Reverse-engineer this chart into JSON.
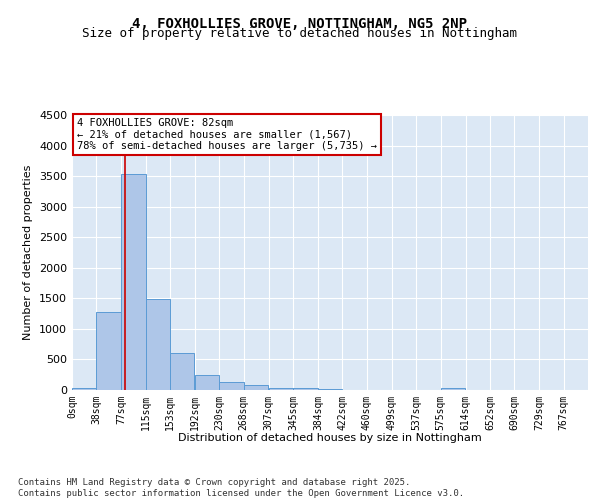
{
  "title_line1": "4, FOXHOLLIES GROVE, NOTTINGHAM, NG5 2NP",
  "title_line2": "Size of property relative to detached houses in Nottingham",
  "xlabel": "Distribution of detached houses by size in Nottingham",
  "ylabel": "Number of detached properties",
  "bar_color": "#aec6e8",
  "bar_edge_color": "#5b9bd5",
  "background_color": "#dce8f5",
  "grid_color": "#ffffff",
  "bin_labels": [
    "0sqm",
    "38sqm",
    "77sqm",
    "115sqm",
    "153sqm",
    "192sqm",
    "230sqm",
    "268sqm",
    "307sqm",
    "345sqm",
    "384sqm",
    "422sqm",
    "460sqm",
    "499sqm",
    "537sqm",
    "575sqm",
    "614sqm",
    "652sqm",
    "690sqm",
    "729sqm",
    "767sqm"
  ],
  "bar_heights": [
    30,
    1270,
    3530,
    1490,
    600,
    250,
    135,
    90,
    30,
    25,
    10,
    0,
    0,
    0,
    0,
    40,
    0,
    0,
    0,
    0,
    0
  ],
  "bin_edges": [
    0,
    38,
    77,
    115,
    153,
    192,
    230,
    268,
    307,
    345,
    384,
    422,
    460,
    499,
    537,
    575,
    614,
    652,
    690,
    729,
    767
  ],
  "ylim": [
    0,
    4500
  ],
  "yticks": [
    0,
    500,
    1000,
    1500,
    2000,
    2500,
    3000,
    3500,
    4000,
    4500
  ],
  "red_line_x": 82,
  "annotation_text": "4 FOXHOLLIES GROVE: 82sqm\n← 21% of detached houses are smaller (1,567)\n78% of semi-detached houses are larger (5,735) →",
  "annotation_box_color": "#ffffff",
  "annotation_border_color": "#cc0000",
  "footer_text": "Contains HM Land Registry data © Crown copyright and database right 2025.\nContains public sector information licensed under the Open Government Licence v3.0.",
  "title_fontsize": 10,
  "subtitle_fontsize": 9,
  "annotation_fontsize": 7.5,
  "footer_fontsize": 6.5,
  "ylabel_fontsize": 8,
  "xlabel_fontsize": 8,
  "ytick_fontsize": 8,
  "xtick_fontsize": 7
}
